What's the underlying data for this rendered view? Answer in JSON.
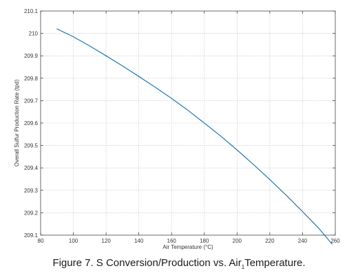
{
  "caption": {
    "text_a": "Figure 7. S Conversion/Production vs. Air",
    "text_sub": "1",
    "text_b": "Temperature."
  },
  "chart_data": {
    "type": "line",
    "xlabel": "Air Temperature (°C)",
    "ylabel": "Overall Sulfur Production Rate (tpd)",
    "xlim": [
      80,
      260
    ],
    "ylim": [
      209.1,
      210.1
    ],
    "grid": true,
    "xticks": [
      80,
      100,
      120,
      140,
      160,
      180,
      200,
      220,
      240,
      260
    ],
    "yticks": [
      209.1,
      209.2,
      209.3,
      209.4,
      209.5,
      209.6,
      209.7,
      209.8,
      209.9,
      210,
      210.1
    ],
    "ytick_labels": [
      "209.1",
      "209.2",
      "209.3",
      "209.4",
      "209.5",
      "209.6",
      "209.7",
      "209.8",
      "209.9",
      "210",
      "210.1"
    ],
    "series": [
      {
        "color": "#1f77b4",
        "x": [
          90,
          100,
          110,
          120,
          130,
          140,
          150,
          160,
          170,
          180,
          190,
          200,
          210,
          220,
          230,
          240,
          250,
          258
        ],
        "y": [
          210.02,
          209.985,
          209.944,
          209.9,
          209.855,
          209.808,
          209.76,
          209.71,
          209.657,
          209.6,
          209.542,
          209.48,
          209.415,
          209.348,
          209.278,
          209.205,
          209.13,
          209.06
        ]
      }
    ]
  }
}
